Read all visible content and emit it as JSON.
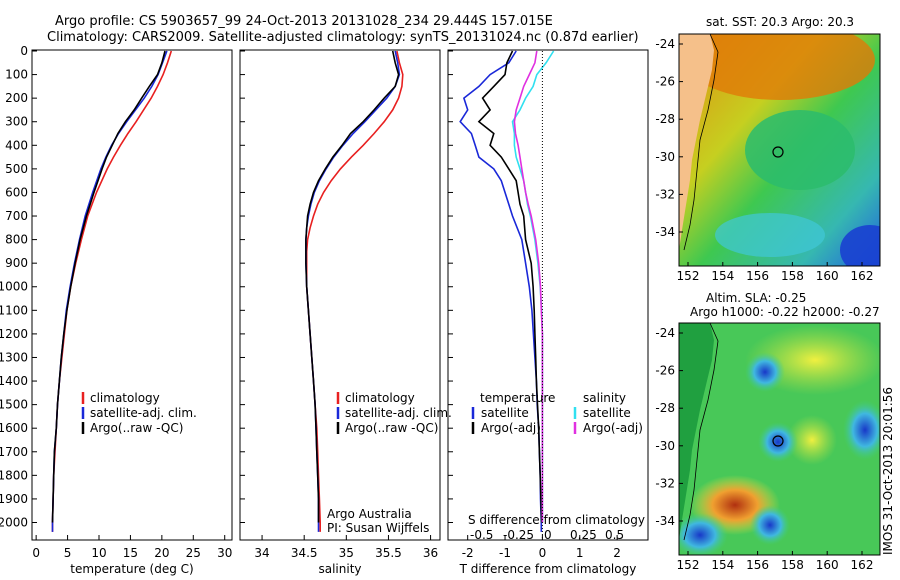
{
  "header": {
    "title_line1": "Argo profile: CS 5903657_99 24-Oct-2013 20131028_234 29.444S 157.015E",
    "title_line2": "Climatology: CARS2009. Satellite-adjusted climatology: synTS_20131024.nc (0.87d earlier)"
  },
  "colors": {
    "climatology": "#e82020",
    "satellite": "#1a28d8",
    "argo": "#000000",
    "sat_diff": "#30e0f0",
    "argo_s_diff": "#e030e0",
    "land": "#f5c08a"
  },
  "depth_axis": {
    "ylim": [
      0,
      2070
    ],
    "ticks": [
      0,
      100,
      200,
      300,
      400,
      500,
      600,
      700,
      800,
      900,
      1000,
      1100,
      1200,
      1300,
      1400,
      1500,
      1600,
      1700,
      1800,
      1900,
      2000
    ]
  },
  "legend_profile": [
    "climatology",
    "satellite-adj. clim.",
    "Argo(..raw -QC)"
  ],
  "legend_diff": {
    "temp_title": "temperature",
    "sal_title": "salinity",
    "t_items": [
      "satellite",
      "Argo(-adj)"
    ],
    "s_items": [
      "satellite",
      "Argo(-adj)"
    ]
  },
  "panel_text": {
    "institution": "Argo Australia",
    "pi": "PI: Susan Wijffels",
    "s_diff_label": "S difference from climatology",
    "s_diff_ticks": [
      "-0.5",
      "-0.25",
      "0",
      "0.25",
      "0.5"
    ]
  },
  "maps": {
    "sst_title": "sat. SST: 20.3 Argo: 20.3",
    "sla_title1": "Altim. SLA: -0.25",
    "sla_title2": "Argo h1000: -0.22 h2000: -0.27",
    "lat_ticks": [
      "-24",
      "-26",
      "-28",
      "-30",
      "-32",
      "-34"
    ],
    "lon_ticks": [
      "152",
      "154",
      "156",
      "158",
      "160",
      "162"
    ],
    "stamp": "IMOS 31-Oct-2013 20:01:56",
    "argo_position": {
      "lon": 157.015,
      "lat": -29.444
    }
  },
  "chart_data": [
    {
      "type": "line",
      "title": "",
      "xlabel": "temperature (deg C)",
      "ylabel": "",
      "xlim": [
        -0.5,
        31
      ],
      "x_ticks": [
        0,
        5,
        10,
        15,
        20,
        25,
        30
      ],
      "series": [
        {
          "name": "climatology",
          "depth": [
            0,
            50,
            100,
            150,
            200,
            250,
            300,
            350,
            400,
            450,
            500,
            600,
            700,
            800,
            900,
            1000,
            1100,
            1200,
            1300,
            1400,
            1500,
            1600,
            1700,
            1800,
            1900,
            2000,
            2040
          ],
          "values": [
            21.5,
            20.9,
            20.2,
            19.3,
            18.3,
            17.1,
            15.9,
            14.6,
            13.4,
            12.3,
            11.3,
            9.6,
            8.2,
            7.2,
            6.3,
            5.5,
            4.9,
            4.5,
            4.1,
            3.7,
            3.4,
            3.2,
            3.0,
            2.8,
            2.7,
            2.6,
            2.6
          ]
        },
        {
          "name": "satellite-adj. clim.",
          "depth": [
            0,
            50,
            100,
            150,
            200,
            250,
            300,
            350,
            400,
            450,
            500,
            600,
            700,
            800,
            900,
            1000,
            1100,
            1200,
            1300,
            1400,
            1500,
            1600,
            1700,
            1800,
            1900,
            2000,
            2040
          ],
          "values": [
            20.8,
            20.1,
            19.4,
            18.4,
            17.2,
            15.8,
            14.4,
            13.1,
            12.0,
            11.1,
            10.3,
            9.0,
            7.8,
            6.9,
            6.1,
            5.4,
            4.8,
            4.4,
            4.0,
            3.7,
            3.4,
            3.2,
            2.9,
            2.8,
            2.7,
            2.6,
            2.6
          ]
        },
        {
          "name": "Argo(..raw -QC)",
          "depth": [
            0,
            50,
            100,
            150,
            200,
            250,
            300,
            350,
            400,
            450,
            500,
            600,
            700,
            800,
            900,
            1000,
            1100,
            1200,
            1300,
            1400,
            1500,
            1600,
            1700,
            1800,
            1900,
            2000
          ],
          "values": [
            20.5,
            20.0,
            19.3,
            18.0,
            16.8,
            15.6,
            14.2,
            13.0,
            12.1,
            11.2,
            10.5,
            9.2,
            8.0,
            7.0,
            6.2,
            5.5,
            4.9,
            4.4,
            4.0,
            3.7,
            3.4,
            3.2,
            2.9,
            2.8,
            2.7,
            2.6
          ]
        }
      ]
    },
    {
      "type": "line",
      "title": "",
      "xlabel": "salinity",
      "ylabel": "",
      "xlim": [
        33.75,
        36.1
      ],
      "x_ticks": [
        34,
        34.5,
        35,
        35.5,
        36
      ],
      "series": [
        {
          "name": "climatology",
          "depth": [
            0,
            50,
            100,
            150,
            200,
            250,
            300,
            350,
            400,
            450,
            500,
            550,
            600,
            650,
            700,
            750,
            800,
            850,
            900,
            1000,
            1100,
            1200,
            1300,
            1400,
            1500,
            1600,
            1700,
            1800,
            1900,
            2000,
            2040
          ],
          "values": [
            35.6,
            35.63,
            35.67,
            35.66,
            35.62,
            35.55,
            35.45,
            35.33,
            35.2,
            35.06,
            34.93,
            34.82,
            34.73,
            34.66,
            34.61,
            34.57,
            34.54,
            34.53,
            34.53,
            34.53,
            34.55,
            34.57,
            34.59,
            34.61,
            34.63,
            34.65,
            34.66,
            34.67,
            34.68,
            34.69,
            34.69
          ]
        },
        {
          "name": "satellite-adj. clim.",
          "depth": [
            0,
            50,
            100,
            150,
            200,
            250,
            300,
            350,
            400,
            450,
            500,
            550,
            600,
            650,
            700,
            750,
            800,
            850,
            900,
            1000,
            1100,
            1200,
            1300,
            1400,
            1500,
            1600,
            1700,
            1800,
            1900,
            2000,
            2040
          ],
          "values": [
            35.58,
            35.61,
            35.63,
            35.58,
            35.48,
            35.35,
            35.22,
            35.08,
            34.96,
            34.85,
            34.76,
            34.68,
            34.62,
            34.58,
            34.55,
            34.53,
            34.52,
            34.52,
            34.52,
            34.53,
            34.55,
            34.57,
            34.59,
            34.61,
            34.63,
            34.64,
            34.65,
            34.66,
            34.67,
            34.67,
            34.67
          ]
        },
        {
          "name": "Argo(..raw -QC)",
          "depth": [
            0,
            50,
            100,
            150,
            200,
            250,
            300,
            350,
            400,
            450,
            500,
            550,
            600,
            650,
            700,
            750,
            800,
            850,
            900,
            1000,
            1100,
            1200,
            1300,
            1400,
            1500,
            1600,
            1700,
            1800,
            1900,
            2000
          ],
          "values": [
            35.55,
            35.58,
            35.62,
            35.58,
            35.45,
            35.33,
            35.2,
            35.05,
            34.95,
            34.84,
            34.75,
            34.67,
            34.61,
            34.57,
            34.54,
            34.53,
            34.52,
            34.52,
            34.52,
            34.53,
            34.55,
            34.57,
            34.59,
            34.61,
            34.63,
            34.64,
            34.65,
            34.66,
            34.67,
            34.67
          ]
        }
      ]
    },
    {
      "type": "line",
      "title": "",
      "xlabel": "T difference from climatology",
      "ylabel": "",
      "xlim": [
        -2.5,
        2.8
      ],
      "x_ticks": [
        "-2",
        "-1",
        "0",
        "1",
        "2"
      ],
      "x_tick_values": [
        -2,
        -1,
        0,
        1,
        2
      ],
      "series": [
        {
          "name": "T satellite",
          "depth": [
            0,
            50,
            100,
            150,
            200,
            250,
            300,
            350,
            400,
            450,
            500,
            550,
            600,
            650,
            700,
            800,
            900,
            1000,
            1100,
            1200,
            1300,
            1400,
            1500,
            1600,
            1700,
            1800,
            1900,
            2000,
            2040
          ],
          "values": [
            -0.7,
            -0.9,
            -1.4,
            -1.7,
            -2.1,
            -2.0,
            -2.2,
            -1.9,
            -1.8,
            -1.7,
            -1.3,
            -1.1,
            -1.0,
            -0.9,
            -0.8,
            -0.55,
            -0.45,
            -0.35,
            -0.28,
            -0.24,
            -0.2,
            -0.16,
            -0.14,
            -0.1,
            -0.08,
            -0.06,
            -0.05,
            -0.03,
            -0.03
          ]
        },
        {
          "name": "T Argo(-adj)",
          "depth": [
            0,
            50,
            100,
            150,
            200,
            250,
            300,
            350,
            400,
            450,
            500,
            550,
            600,
            650,
            700,
            800,
            900,
            1000,
            1100,
            1200,
            1300,
            1400,
            1500,
            1600,
            1700,
            1800,
            1900,
            2000
          ],
          "values": [
            -0.8,
            -0.95,
            -1.0,
            -1.3,
            -1.6,
            -1.4,
            -1.7,
            -1.3,
            -1.4,
            -1.1,
            -0.9,
            -0.7,
            -0.65,
            -0.6,
            -0.5,
            -0.45,
            -0.3,
            -0.25,
            -0.22,
            -0.2,
            -0.18,
            -0.16,
            -0.13,
            -0.1,
            -0.08,
            -0.06,
            -0.04,
            -0.02
          ]
        },
        {
          "name": "S satellite",
          "depth": [
            0,
            50,
            100,
            150,
            200,
            250,
            300,
            350,
            400,
            450,
            500,
            550,
            600,
            650,
            700,
            800,
            900,
            1000,
            1100,
            1200,
            1300,
            1400,
            1500,
            1600,
            1700,
            1800,
            1900,
            2000
          ],
          "values": [
            0.3,
            0.1,
            -0.15,
            -0.25,
            -0.45,
            -0.6,
            -0.8,
            -0.75,
            -0.75,
            -0.7,
            -0.6,
            -0.5,
            -0.45,
            -0.4,
            -0.32,
            -0.2,
            -0.12,
            -0.06,
            -0.02,
            0.0,
            0.0,
            0.0,
            0.0,
            0.0,
            0.0,
            0.0,
            0.0,
            0.0
          ]
        },
        {
          "name": "S Argo(-adj)",
          "depth": [
            0,
            50,
            100,
            150,
            200,
            250,
            300,
            350,
            400,
            450,
            500,
            550,
            600,
            650,
            700,
            800,
            900,
            1000,
            1100,
            1200,
            1300,
            1400,
            1500,
            1600,
            1700,
            1800,
            1900,
            2000
          ],
          "values": [
            -0.15,
            -0.2,
            -0.35,
            -0.5,
            -0.6,
            -0.7,
            -0.75,
            -0.72,
            -0.65,
            -0.6,
            -0.55,
            -0.5,
            -0.45,
            -0.38,
            -0.3,
            -0.18,
            -0.1,
            -0.05,
            -0.03,
            0.0,
            0.0,
            0.0,
            0.0,
            0.0,
            0.0,
            0.0,
            0.0,
            0.0
          ]
        }
      ]
    }
  ]
}
